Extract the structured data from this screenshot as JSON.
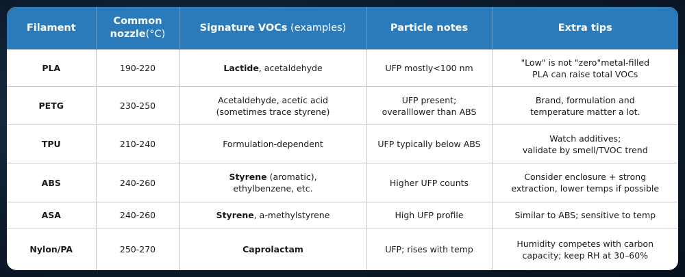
{
  "table": {
    "header": [
      [
        [
          {
            "text": "Filament",
            "bold": true
          }
        ]
      ],
      [
        [
          {
            "text": "Common",
            "bold": true
          }
        ],
        [
          {
            "text": "nozzle",
            "bold": true
          },
          "(°C)"
        ]
      ],
      [
        [
          {
            "text": "Signature VOCs",
            "bold": true
          },
          " (examples)"
        ]
      ],
      [
        [
          {
            "text": "Particle notes",
            "bold": true
          }
        ]
      ],
      [
        [
          {
            "text": "Extra tips",
            "bold": true
          }
        ]
      ]
    ],
    "rows": [
      [
        [
          [
            {
              "text": "PLA",
              "bold": true
            }
          ]
        ],
        [
          [
            "190-220"
          ]
        ],
        [
          [
            {
              "text": "Lactide",
              "bold": true
            },
            ", acetaldehyde"
          ]
        ],
        [
          [
            "UFP mostly<100 nm"
          ]
        ],
        [
          [
            "\"Low\" is not \"zero\"metal-filled"
          ],
          [
            "PLA can raise total VOCs"
          ]
        ]
      ],
      [
        [
          [
            {
              "text": "PETG",
              "bold": true
            }
          ]
        ],
        [
          [
            "230-250"
          ]
        ],
        [
          [
            "Acetaldehyde, acetic acid"
          ],
          [
            "(sometimes trace styrene)"
          ]
        ],
        [
          [
            "UFP present;"
          ],
          [
            "overalllower than ABS"
          ]
        ],
        [
          [
            "Brand, formulation and"
          ],
          [
            "temperature matter a lot."
          ]
        ]
      ],
      [
        [
          [
            {
              "text": "TPU",
              "bold": true
            }
          ]
        ],
        [
          [
            "210-240"
          ]
        ],
        [
          [
            "Formulation-dependent"
          ]
        ],
        [
          [
            "UFP typically below ABS"
          ]
        ],
        [
          [
            "Watch additives;"
          ],
          [
            "validate by smell/TVOC trend"
          ]
        ]
      ],
      [
        [
          [
            {
              "text": "ABS",
              "bold": true
            }
          ]
        ],
        [
          [
            "240-260"
          ]
        ],
        [
          [
            {
              "text": "Styrene",
              "bold": true
            },
            " (aromatic),"
          ],
          [
            "ethylbenzene, etc."
          ]
        ],
        [
          [
            "Higher UFP counts"
          ]
        ],
        [
          [
            "Consider enclosure + strong"
          ],
          [
            "extraction, lower temps if possible"
          ]
        ]
      ],
      [
        [
          [
            {
              "text": "ASA",
              "bold": true
            }
          ]
        ],
        [
          [
            "240-260"
          ]
        ],
        [
          [
            {
              "text": "Styrene",
              "bold": true
            },
            ", a-methylstyrene"
          ]
        ],
        [
          [
            "High UFP profile"
          ]
        ],
        [
          [
            "Similar to ABS; sensitive to temp"
          ]
        ]
      ],
      [
        [
          [
            {
              "text": "Nylon/PA",
              "bold": true
            }
          ]
        ],
        [
          [
            "250-270"
          ]
        ],
        [
          [
            {
              "text": "Caprolactam",
              "bold": true
            }
          ]
        ],
        [
          [
            "UFP; rises with temp"
          ]
        ],
        [
          [
            "Humidity competes with carbon"
          ],
          [
            "capacity; keep RH at 30–60%"
          ]
        ]
      ]
    ]
  }
}
